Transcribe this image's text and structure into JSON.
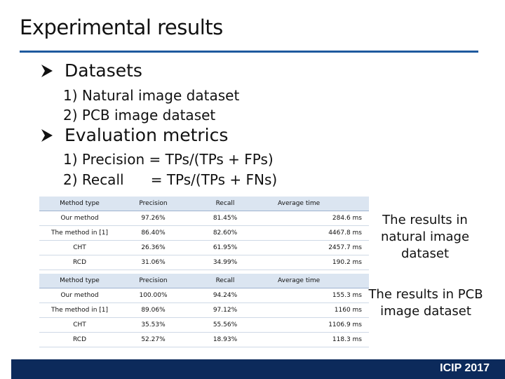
{
  "slide": {
    "title": "Experimental results",
    "bullets": [
      {
        "label": "Datasets",
        "items": [
          "1) Natural image dataset",
          "2) PCB image dataset"
        ]
      },
      {
        "label": "Evaluation metrics",
        "items": [
          "1) Precision = TPs/(TPs + FPs)",
          "2) Recall      = TPs/(TPs + FNs)"
        ]
      }
    ],
    "tables": [
      {
        "header": [
          "Method type",
          "Precision",
          "Recall",
          "Average time"
        ],
        "rows": [
          [
            "Our method",
            "97.26%",
            "81.45%",
            "284.6 ms"
          ],
          [
            "The method in [1]",
            "86.40%",
            "82.60%",
            "4467.8 ms"
          ],
          [
            "CHT",
            "26.36%",
            "61.95%",
            "2457.7 ms"
          ],
          [
            "RCD",
            "31.06%",
            "34.99%",
            "190.2 ms"
          ]
        ],
        "caption": [
          "The results in",
          "natural image",
          "dataset"
        ]
      },
      {
        "header": [
          "Method type",
          "Precision",
          "Recall",
          "Average time"
        ],
        "rows": [
          [
            "Our method",
            "100.00%",
            "94.24%",
            "155.3 ms"
          ],
          [
            "The method in [1]",
            "89.06%",
            "97.12%",
            "1160 ms"
          ],
          [
            "CHT",
            "35.53%",
            "55.56%",
            "1106.9 ms"
          ],
          [
            "RCD",
            "52.27%",
            "18.93%",
            "118.3 ms"
          ]
        ],
        "caption": [
          "The results in PCB",
          "image dataset"
        ]
      }
    ],
    "footer": "ICIP 2017",
    "colors": {
      "title_rule": "#1f5a9e",
      "footer_bar": "#0c2a5b",
      "header_row": "#dbe5f1"
    }
  }
}
